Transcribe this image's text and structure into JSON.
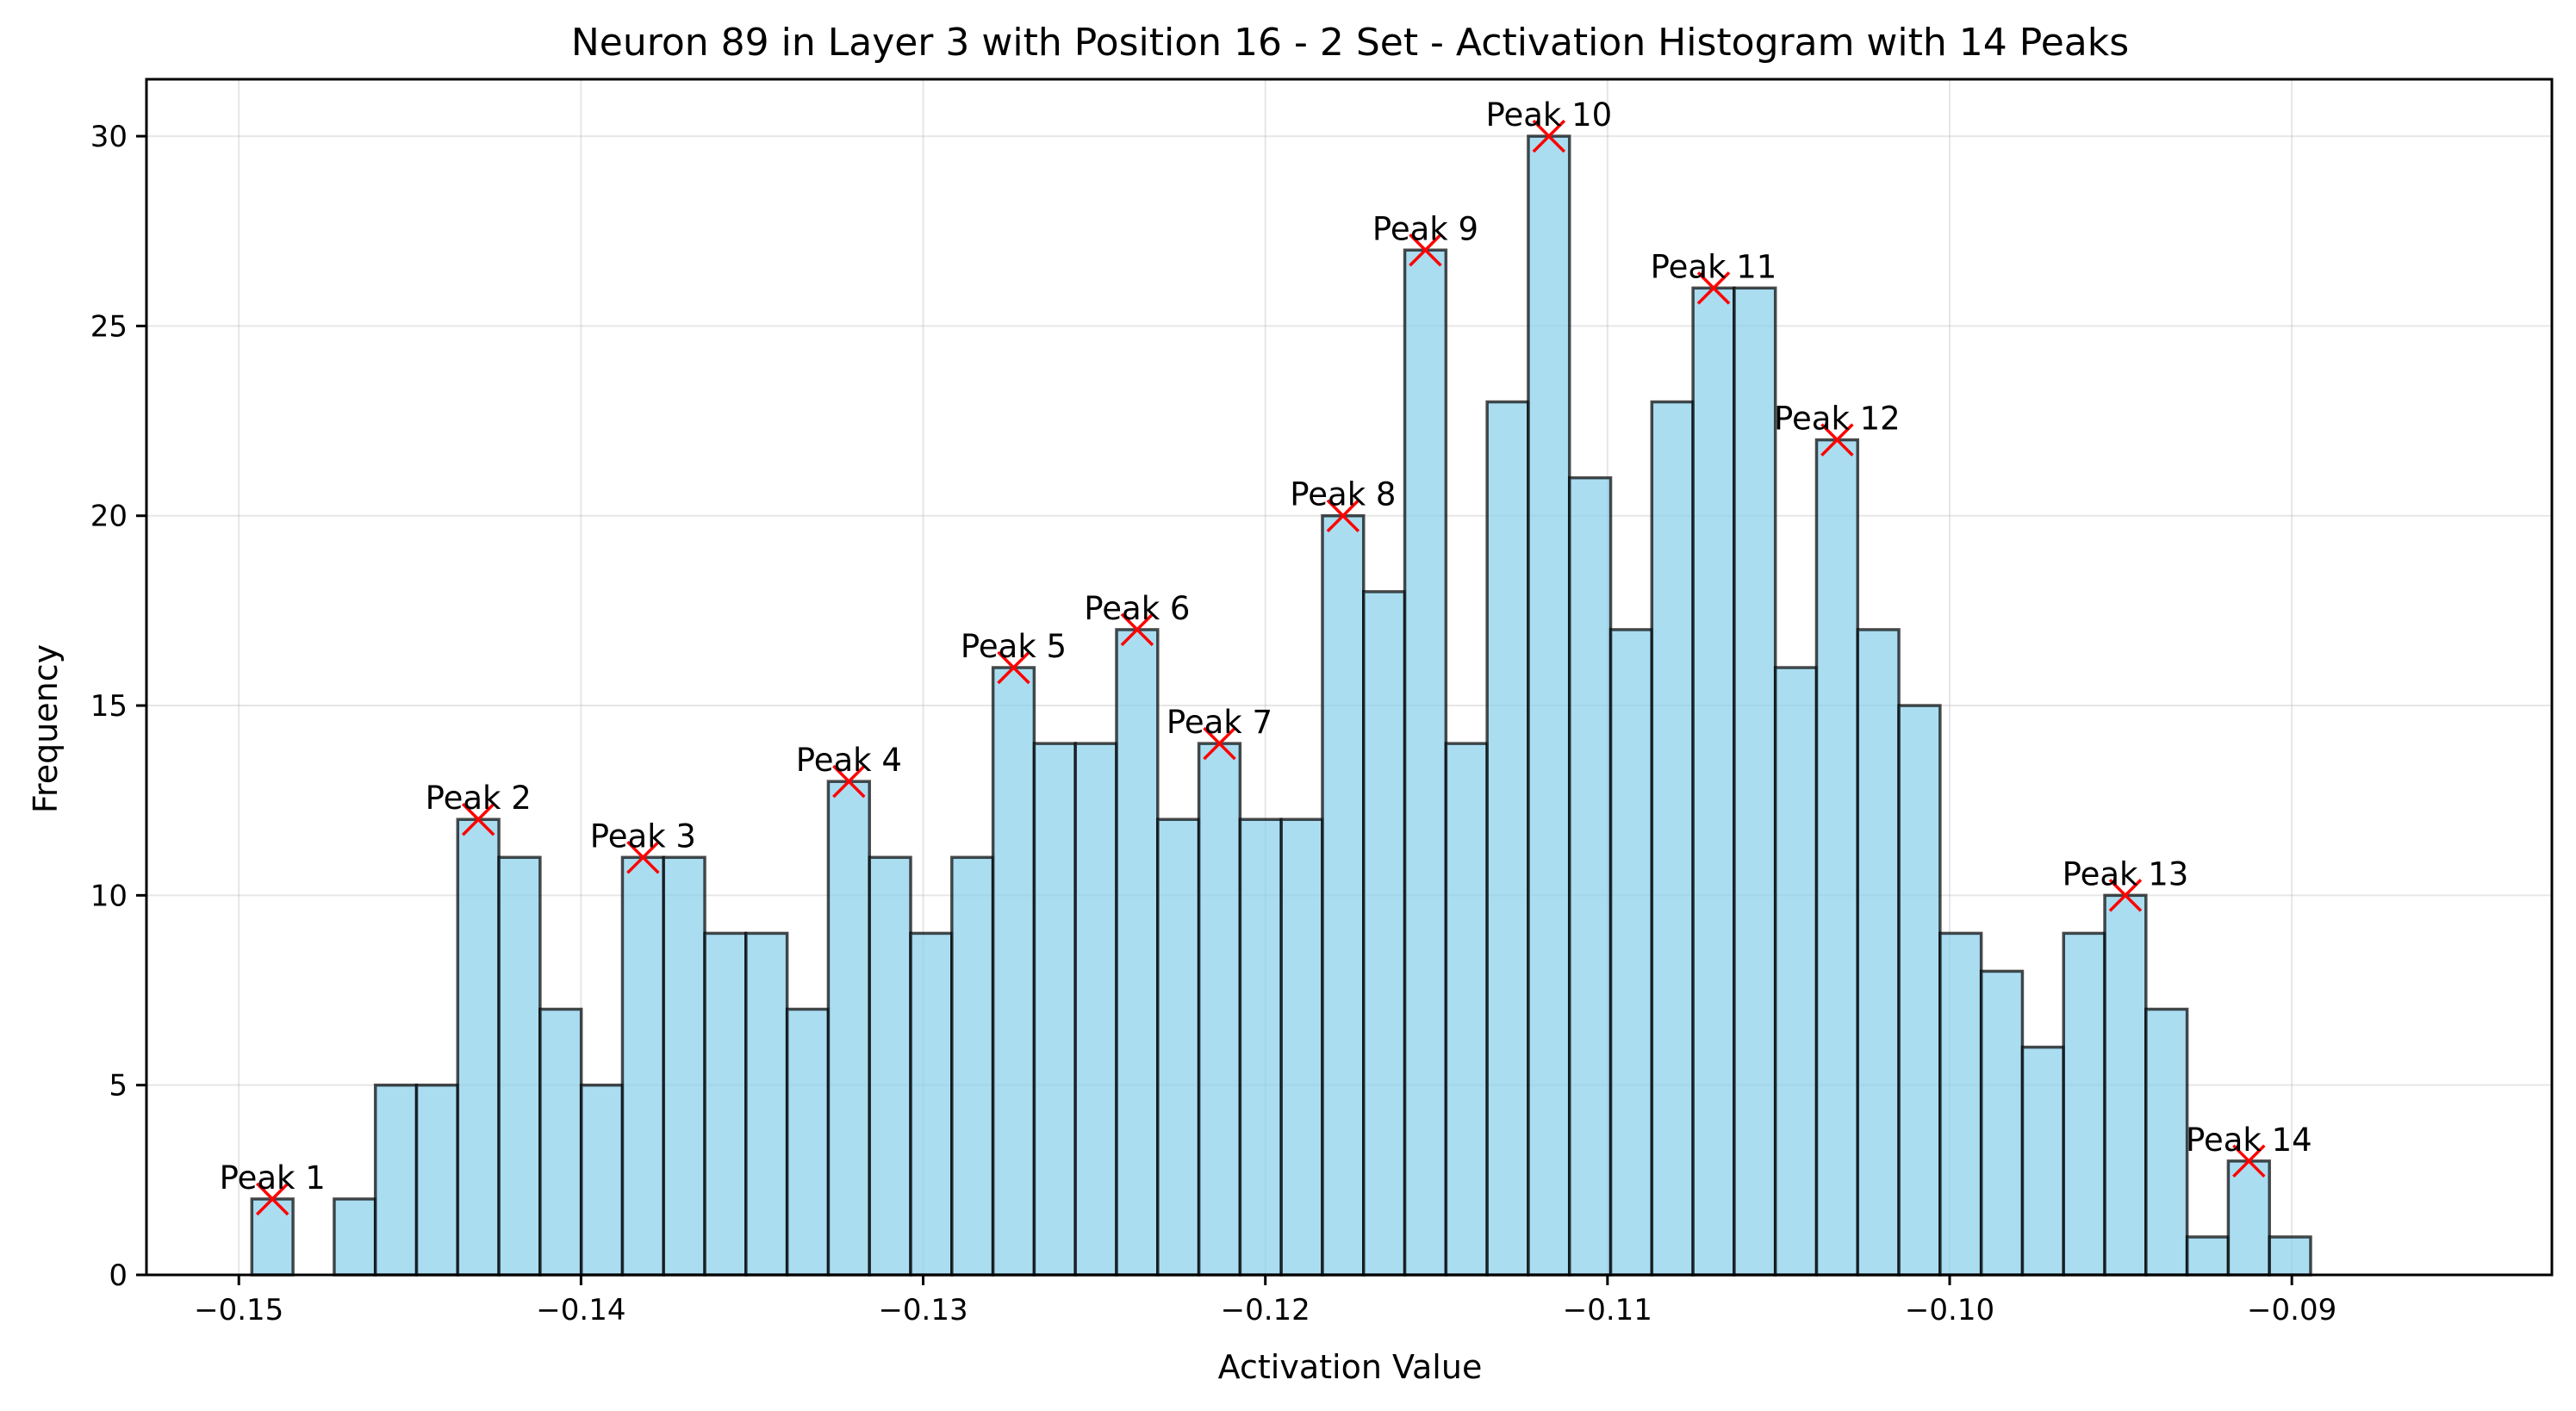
{
  "chart_data": {
    "type": "bar",
    "title": "Neuron 89 in Layer 3 with Position 16 - 2 Set - Activation Histogram with 14 Peaks",
    "xlabel": "Activation Value",
    "ylabel": "Frequency",
    "xlim": [
      -0.1527,
      -0.0824
    ],
    "ylim": [
      0,
      31.5
    ],
    "xticks": [
      -0.15,
      -0.14,
      -0.13,
      -0.12,
      -0.11,
      -0.1,
      -0.09
    ],
    "xtick_labels": [
      "−0.15",
      "−0.14",
      "−0.13",
      "−0.12",
      "−0.11",
      "−0.10",
      "−0.09"
    ],
    "yticks": [
      0,
      5,
      10,
      15,
      20,
      25,
      30
    ],
    "ytick_labels": [
      "0",
      "5",
      "10",
      "15",
      "20",
      "25",
      "30"
    ],
    "grid": true,
    "bin_start": -0.14962,
    "bin_width": 0.0012034,
    "counts": [
      2,
      0,
      2,
      5,
      5,
      12,
      11,
      7,
      5,
      11,
      11,
      9,
      9,
      7,
      13,
      11,
      9,
      11,
      16,
      14,
      14,
      17,
      12,
      14,
      12,
      12,
      20,
      18,
      27,
      14,
      23,
      30,
      21,
      17,
      23,
      26,
      26,
      16,
      22,
      17,
      15,
      9,
      8,
      6,
      9,
      10,
      7,
      1,
      3,
      1
    ],
    "peaks": [
      {
        "label": "Peak 1",
        "bin": 0,
        "value": 2
      },
      {
        "label": "Peak 2",
        "bin": 5,
        "value": 12
      },
      {
        "label": "Peak 3",
        "bin": 9,
        "value": 11
      },
      {
        "label": "Peak 4",
        "bin": 14,
        "value": 13
      },
      {
        "label": "Peak 5",
        "bin": 18,
        "value": 16
      },
      {
        "label": "Peak 6",
        "bin": 21,
        "value": 17
      },
      {
        "label": "Peak 7",
        "bin": 23,
        "value": 14
      },
      {
        "label": "Peak 8",
        "bin": 26,
        "value": 20
      },
      {
        "label": "Peak 9",
        "bin": 28,
        "value": 27
      },
      {
        "label": "Peak 10",
        "bin": 31,
        "value": 30
      },
      {
        "label": "Peak 11",
        "bin": 35,
        "value": 26
      },
      {
        "label": "Peak 12",
        "bin": 38,
        "value": 22
      },
      {
        "label": "Peak 13",
        "bin": 45,
        "value": 10
      },
      {
        "label": "Peak 14",
        "bin": 48,
        "value": 3
      }
    ],
    "colors": {
      "bar_fill": "#87ceeb",
      "bar_edge": "#000000",
      "peak_marker": "#ff0000"
    }
  }
}
